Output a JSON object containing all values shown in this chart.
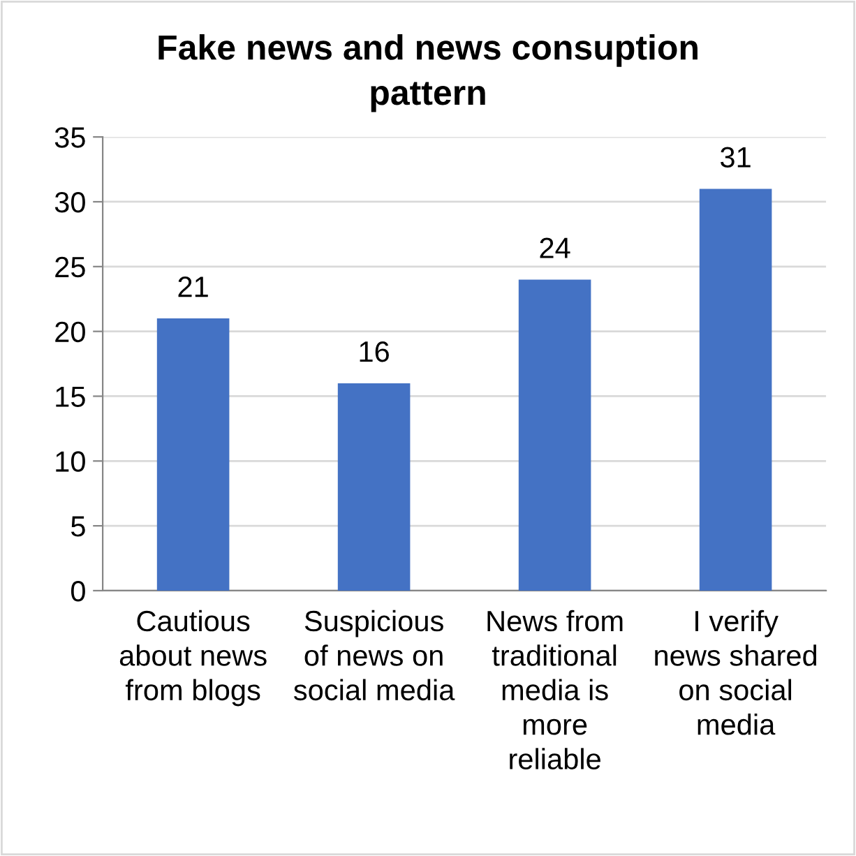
{
  "chart_data": {
    "type": "bar",
    "title": "Fake news and news consuption pattern",
    "categories": [
      "Cautious about news from blogs",
      "Suspicious of news on social media",
      "News from traditional media is more reliable",
      "I verify news shared on social media"
    ],
    "values": [
      21,
      16,
      24,
      31
    ],
    "color": "#4472c4",
    "ylim": [
      0,
      35
    ],
    "yticks": [
      0,
      5,
      10,
      15,
      20,
      25,
      30,
      35
    ],
    "grid": "y",
    "data_labels": true
  }
}
